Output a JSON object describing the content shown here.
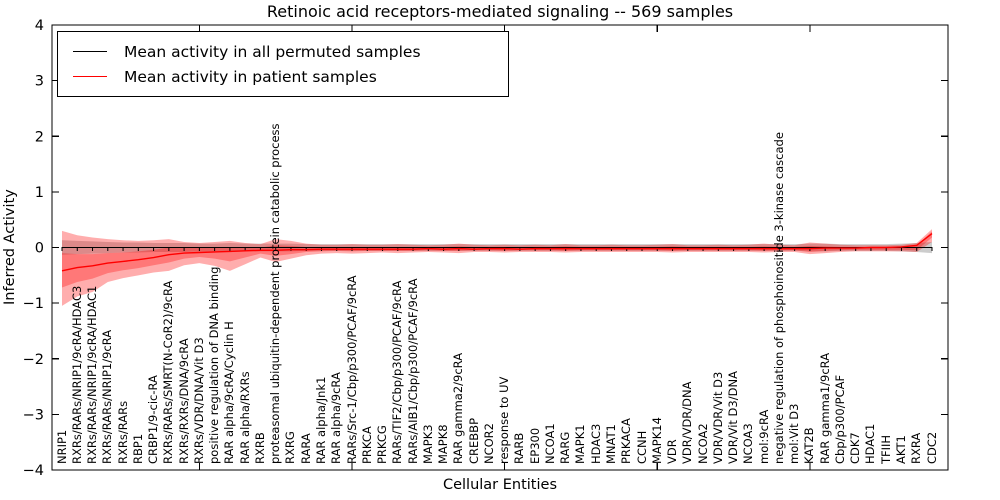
{
  "title": "Retinoic acid receptors-mediated signaling -- 569 samples",
  "axes": {
    "ylabel": "Inferred Activity",
    "xlabel": "Cellular Entities",
    "ytick_values": [
      4,
      3,
      2,
      1,
      0,
      -1,
      -2,
      -3,
      -4
    ],
    "ytick_labels": [
      "4",
      "3",
      "2",
      "1",
      "0",
      "−1",
      "−2",
      "−3",
      "−4"
    ],
    "ylim": [
      -4,
      4
    ]
  },
  "legend": {
    "items": [
      {
        "label": "Mean activity in all permuted samples",
        "color": "#000000"
      },
      {
        "label": "Mean activity in patient samples",
        "color": "#ff0000"
      }
    ]
  },
  "colors": {
    "background": "#ffffff",
    "frame": "#000000",
    "permuted_line": "#000000",
    "patient_line": "#ff0000",
    "permuted_band": "#808080",
    "patient_band": "#ff0000"
  },
  "chart_data": {
    "type": "line",
    "title": "Retinoic acid receptors-mediated signaling -- 569 samples",
    "xlabel": "Cellular Entities",
    "ylabel": "Inferred Activity",
    "ylim": [
      -4,
      4
    ],
    "grid": false,
    "legend_position": "upper left",
    "categories": [
      "NRIP1",
      "RXRs/RARs/NRIP1/9cRA/HDAC3",
      "RXRs/RARs/NRIP1/9cRA/HDAC1",
      "RXRs/RARs/NRIP1/9cRA",
      "RXRs/RARs",
      "RBP1",
      "CRBP1/9-cic-RA",
      "RXRs/RARs/SMRT(N-CoR2)/9cRA",
      "RXRs/RXRs/DNA/9cRA",
      "RXRs/VDR/DNA/Vit D3",
      "positive regulation of DNA binding",
      "RAR alpha/9cRA/Cyclin H",
      "RAR alpha/RXRs",
      "RXRB",
      "proteasomal ubiquitin-dependent protein catabolic process",
      "RXRG",
      "RARA",
      "RAR alpha/Jnk1",
      "RAR alpha/9cRA",
      "RARs/Src-1/Cbp/p300/PCAF/9cRA",
      "PRKCA",
      "PRKCG",
      "RARs/TIF2/Cbp/p300/PCAF/9cRA",
      "RARs/AIB1/Cbp/p300/PCAF/9cRA",
      "MAPK3",
      "MAPK8",
      "RAR gamma2/9cRA",
      "CREBBP",
      "NCOR2",
      "response to UV",
      "RARB",
      "EP300",
      "NCOA1",
      "RARG",
      "MAPK1",
      "HDAC3",
      "MNAT1",
      "PRKACA",
      "CCNH",
      "MAPK14",
      "VDR",
      "VDR/VDR/DNA",
      "NCOA2",
      "VDR/VDR/Vit D3",
      "VDR/Vit D3/DNA",
      "NCOA3",
      "mol:9cRA",
      "negative regulation of phosphoinositide 3-kinase cascade",
      "mol:Vit D3",
      "KAT2B",
      "RAR gamma1/9cRA",
      "Cbp/p300/PCAF",
      "CDK7",
      "HDAC1",
      "TFIIH",
      "AKT1",
      "RXRA",
      "CDC2"
    ],
    "series": [
      {
        "name": "Mean activity in all permuted samples",
        "color": "#000000",
        "values": [
          0,
          0,
          0,
          0,
          0,
          0,
          0,
          0,
          0,
          0,
          0,
          0,
          0,
          0,
          0,
          0,
          0,
          0,
          0,
          0,
          0,
          0,
          0,
          0,
          0,
          0,
          0,
          0,
          0,
          0,
          0,
          0,
          0,
          0,
          0,
          0,
          0,
          0,
          0,
          0,
          0,
          0,
          0,
          0,
          0,
          0,
          0,
          0,
          0,
          0,
          0,
          0,
          0,
          0,
          0,
          0,
          0,
          0
        ],
        "band_half_width": [
          0.13,
          0.12,
          0.11,
          0.1,
          0.09,
          0.09,
          0.08,
          0.08,
          0.08,
          0.07,
          0.07,
          0.08,
          0.07,
          0.07,
          0.07,
          0.07,
          0.06,
          0.06,
          0.06,
          0.06,
          0.06,
          0.06,
          0.06,
          0.06,
          0.06,
          0.06,
          0.06,
          0.06,
          0.06,
          0.06,
          0.06,
          0.06,
          0.06,
          0.06,
          0.06,
          0.06,
          0.06,
          0.06,
          0.06,
          0.06,
          0.06,
          0.06,
          0.06,
          0.06,
          0.06,
          0.06,
          0.06,
          0.06,
          0.06,
          0.07,
          0.07,
          0.06,
          0.06,
          0.06,
          0.06,
          0.07,
          0.08,
          0.1
        ]
      },
      {
        "name": "Mean activity in patient samples",
        "color": "#ff0000",
        "values": [
          -0.42,
          -0.36,
          -0.33,
          -0.28,
          -0.25,
          -0.22,
          -0.18,
          -0.13,
          -0.1,
          -0.09,
          -0.08,
          -0.07,
          -0.06,
          -0.05,
          -0.05,
          -0.04,
          -0.04,
          -0.03,
          -0.03,
          -0.03,
          -0.03,
          -0.03,
          -0.03,
          -0.03,
          -0.02,
          -0.03,
          -0.02,
          -0.03,
          -0.02,
          -0.02,
          -0.03,
          -0.02,
          -0.02,
          -0.02,
          -0.02,
          -0.02,
          -0.02,
          -0.02,
          -0.02,
          -0.02,
          -0.02,
          -0.02,
          -0.02,
          -0.02,
          -0.02,
          -0.02,
          -0.02,
          -0.02,
          -0.02,
          -0.02,
          -0.01,
          -0.01,
          -0.01,
          0.0,
          0.0,
          0.01,
          0.04,
          0.25
        ],
        "band_upper": [
          0.3,
          0.22,
          0.18,
          0.15,
          0.13,
          0.12,
          0.13,
          0.15,
          0.1,
          0.08,
          0.1,
          0.12,
          0.08,
          0.06,
          0.15,
          0.12,
          0.07,
          0.05,
          0.05,
          0.06,
          0.05,
          0.05,
          0.06,
          0.05,
          0.04,
          0.05,
          0.07,
          0.05,
          0.04,
          0.05,
          0.04,
          0.05,
          0.04,
          0.06,
          0.04,
          0.04,
          0.05,
          0.04,
          0.04,
          0.05,
          0.06,
          0.04,
          0.04,
          0.05,
          0.04,
          0.05,
          0.07,
          0.05,
          0.04,
          0.09,
          0.07,
          0.05,
          0.04,
          0.04,
          0.04,
          0.05,
          0.08,
          0.33
        ],
        "band_lower": [
          -1.05,
          -0.88,
          -0.8,
          -0.62,
          -0.55,
          -0.5,
          -0.45,
          -0.42,
          -0.32,
          -0.28,
          -0.33,
          -0.42,
          -0.3,
          -0.18,
          -0.26,
          -0.2,
          -0.14,
          -0.11,
          -0.1,
          -0.11,
          -0.1,
          -0.09,
          -0.1,
          -0.09,
          -0.08,
          -0.09,
          -0.1,
          -0.08,
          -0.08,
          -0.09,
          -0.08,
          -0.08,
          -0.08,
          -0.09,
          -0.08,
          -0.08,
          -0.08,
          -0.08,
          -0.08,
          -0.08,
          -0.09,
          -0.08,
          -0.08,
          -0.08,
          -0.08,
          -0.08,
          -0.09,
          -0.08,
          -0.08,
          -0.12,
          -0.1,
          -0.08,
          -0.07,
          -0.07,
          -0.07,
          -0.07,
          -0.08,
          0.1
        ],
        "inner_band_upper": [
          -0.1,
          -0.12,
          -0.12,
          -0.1,
          -0.09,
          -0.07,
          -0.04,
          0.0,
          0.0,
          -0.01,
          0.0,
          0.01,
          0.0,
          0.0,
          0.04,
          0.03,
          0.01,
          0.01,
          0.01,
          0.01,
          0.01,
          0.01,
          0.01,
          0.01,
          0.01,
          0.01,
          0.02,
          0.01,
          0.01,
          0.01,
          0.01,
          0.01,
          0.01,
          0.02,
          0.01,
          0.01,
          0.01,
          0.01,
          0.01,
          0.01,
          0.02,
          0.01,
          0.01,
          0.01,
          0.01,
          0.01,
          0.02,
          0.01,
          0.01,
          0.03,
          0.02,
          0.01,
          0.01,
          0.01,
          0.01,
          0.02,
          0.04,
          0.29
        ],
        "inner_band_lower": [
          -0.72,
          -0.62,
          -0.56,
          -0.46,
          -0.41,
          -0.37,
          -0.32,
          -0.27,
          -0.2,
          -0.17,
          -0.2,
          -0.25,
          -0.18,
          -0.11,
          -0.15,
          -0.12,
          -0.08,
          -0.07,
          -0.06,
          -0.07,
          -0.06,
          -0.06,
          -0.06,
          -0.06,
          -0.05,
          -0.06,
          -0.06,
          -0.05,
          -0.05,
          -0.06,
          -0.05,
          -0.05,
          -0.05,
          -0.06,
          -0.05,
          -0.05,
          -0.05,
          -0.05,
          -0.05,
          -0.05,
          -0.06,
          -0.05,
          -0.05,
          -0.05,
          -0.05,
          -0.05,
          -0.06,
          -0.05,
          -0.05,
          -0.08,
          -0.06,
          -0.05,
          -0.04,
          -0.04,
          -0.04,
          -0.04,
          -0.05,
          0.18
        ]
      }
    ]
  }
}
